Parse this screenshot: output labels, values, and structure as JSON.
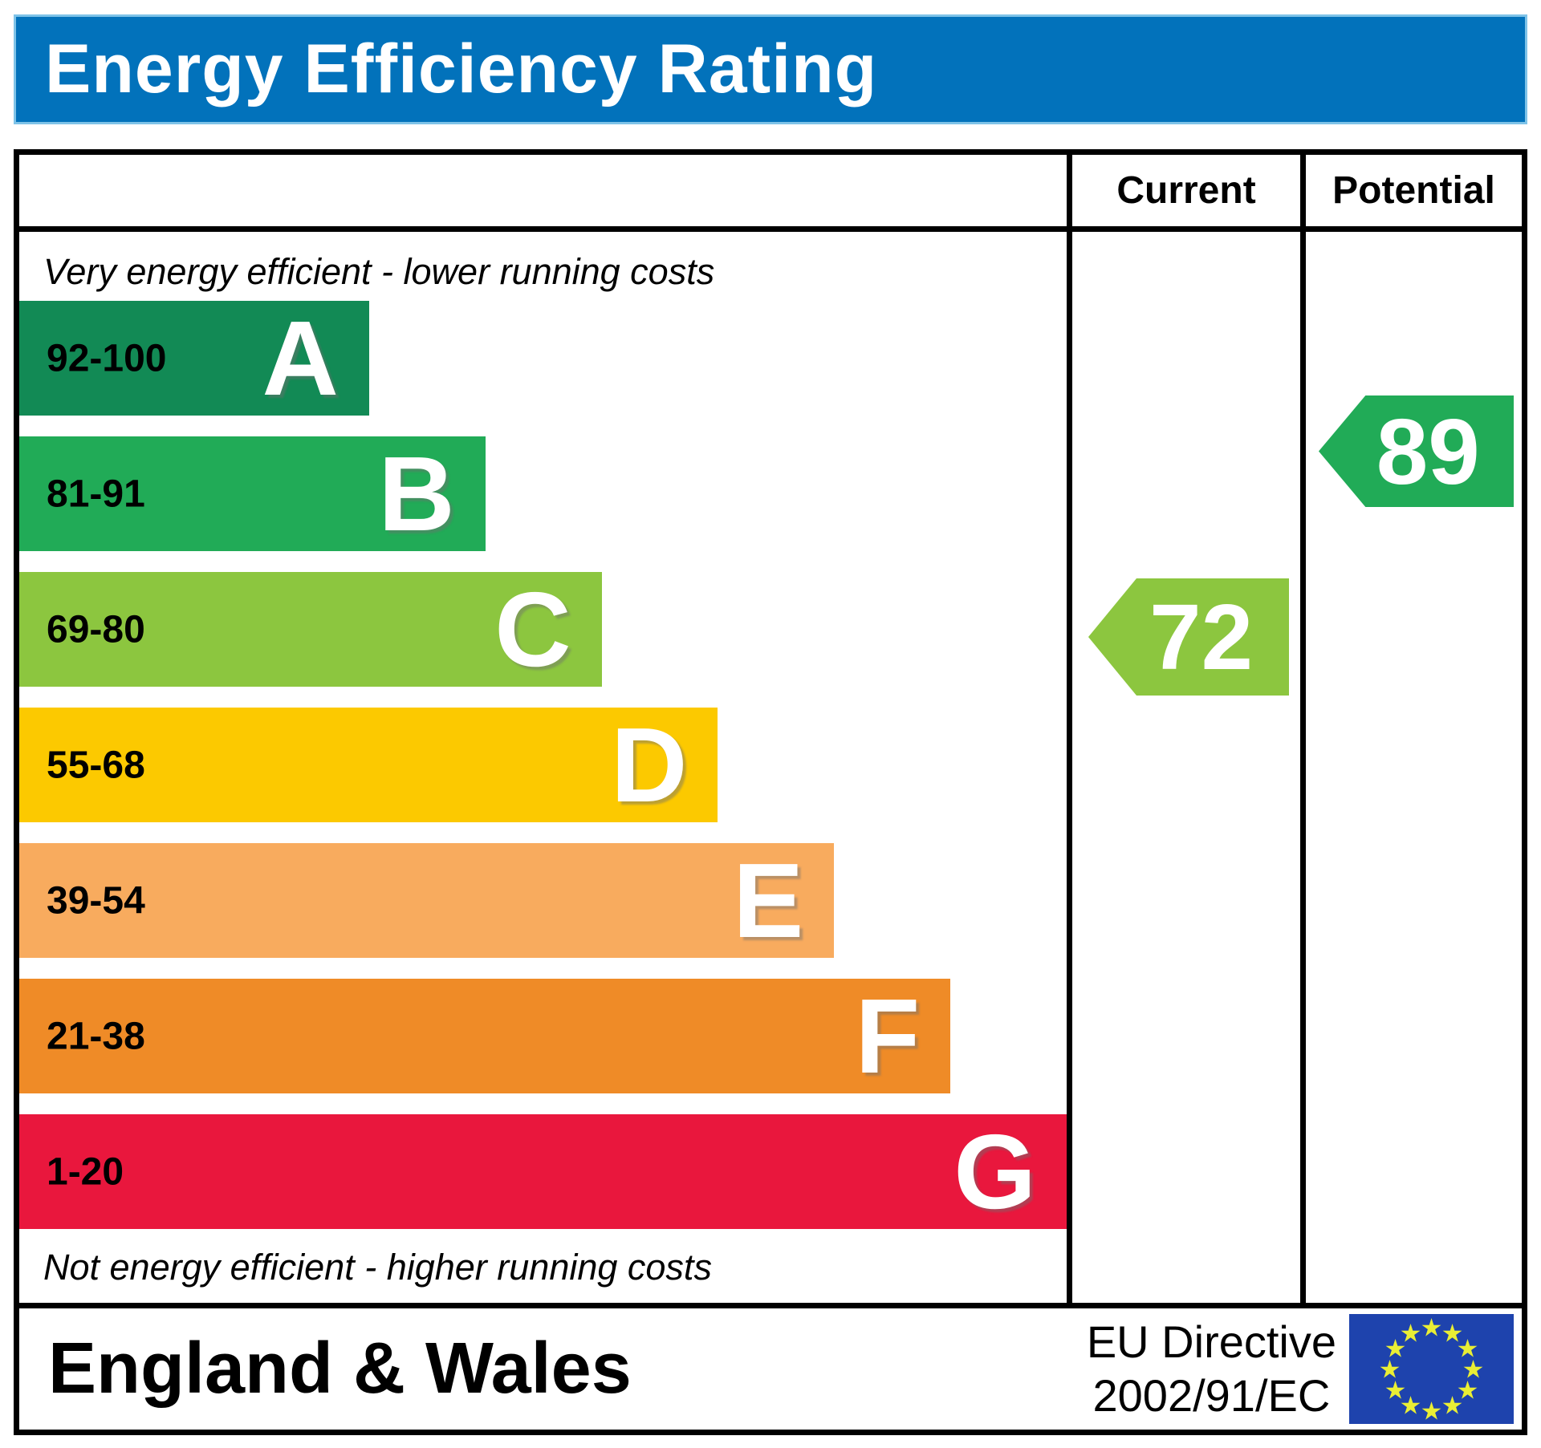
{
  "title": "Energy Efficiency Rating",
  "colors": {
    "header_blue": "#0272bb",
    "band_a": "#128a55",
    "band_b": "#21ab57",
    "band_c": "#8cc63f",
    "band_d": "#fcc900",
    "band_e": "#f8ab5e",
    "band_f": "#ef8b27",
    "band_g": "#e9173d",
    "current_arrow": "#8cc63f",
    "potential_arrow": "#21ab57",
    "eu_flag_blue": "#1e43ad",
    "eu_star_yellow": "#e9ee35"
  },
  "table": {
    "columns": {
      "current": "Current",
      "potential": "Potential"
    },
    "top_note": "Very energy efficient - lower running costs",
    "bottom_note": "Not energy efficient - higher running costs",
    "bands": [
      {
        "letter": "A",
        "range": "92-100",
        "color": "#128a55",
        "width": "33.4%"
      },
      {
        "letter": "B",
        "range": "81-91",
        "color": "#21ab57",
        "width": "44.5%"
      },
      {
        "letter": "C",
        "range": "69-80",
        "color": "#8cc63f",
        "width": "55.6%"
      },
      {
        "letter": "D",
        "range": "55-68",
        "color": "#fcc900",
        "width": "66.7%"
      },
      {
        "letter": "E",
        "range": "39-54",
        "color": "#f8ab5e",
        "width": "77.8%"
      },
      {
        "letter": "F",
        "range": "21-38",
        "color": "#ef8b27",
        "width": "88.9%"
      },
      {
        "letter": "G",
        "range": "1-20",
        "color": "#e9173d",
        "width": "100%"
      }
    ],
    "current": {
      "value": "72",
      "color": "#8cc63f"
    },
    "potential": {
      "value": "89",
      "color": "#21ab57"
    }
  },
  "footer": {
    "region": "England & Wales",
    "directive_line1": "EU Directive",
    "directive_line2": "2002/91/EC",
    "eu_flag": {
      "background": "#1e43ad",
      "star_color": "#e9ee35",
      "star": "★",
      "star_count": 12
    }
  },
  "chart_data": {
    "type": "bar",
    "title": "Energy Efficiency Rating",
    "categories": [
      "A",
      "B",
      "C",
      "D",
      "E",
      "F",
      "G"
    ],
    "band_ranges": [
      "92-100",
      "81-91",
      "69-80",
      "55-68",
      "39-54",
      "21-38",
      "1-20"
    ],
    "band_widths_fraction": [
      0.333,
      0.444,
      0.556,
      0.667,
      0.778,
      0.889,
      1.0
    ],
    "band_colors": [
      "#128a55",
      "#21ab57",
      "#8cc63f",
      "#fcc900",
      "#f8ab5e",
      "#ef8b27",
      "#e9173d"
    ],
    "markers": [
      {
        "label": "Current",
        "value": 72,
        "band": "C",
        "color": "#8cc63f"
      },
      {
        "label": "Potential",
        "value": 89,
        "band": "B",
        "color": "#21ab57"
      }
    ],
    "annotations": [
      "Very energy efficient - lower running costs",
      "Not energy efficient - higher running costs"
    ],
    "footer_labels": [
      "England & Wales",
      "EU Directive 2002/91/EC"
    ],
    "legend_position": "none",
    "grid": false
  }
}
